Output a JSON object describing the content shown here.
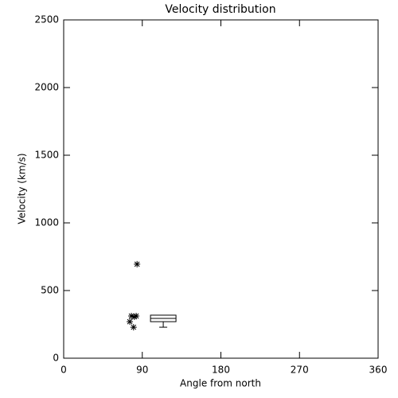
{
  "chart_data": {
    "type": "scatter",
    "title": "Velocity distribution",
    "x_label": "Angle from north",
    "y_label": "Velocity (km/s)",
    "x": [
      84,
      77.5,
      83,
      75.7,
      80,
      81
    ],
    "y": [
      695,
      312,
      312,
      270,
      229,
      306
    ],
    "box": {
      "x": 114,
      "min": 229,
      "q1": 270,
      "median": 294,
      "q3": 318,
      "max": 318
    },
    "xlim": [
      0,
      360
    ],
    "xticks": [
      0,
      90,
      180,
      270,
      360
    ],
    "ylim": [
      0,
      2500
    ],
    "yticks": [
      0,
      500,
      1000,
      1500,
      2000,
      2500
    ],
    "color": "#000000"
  }
}
